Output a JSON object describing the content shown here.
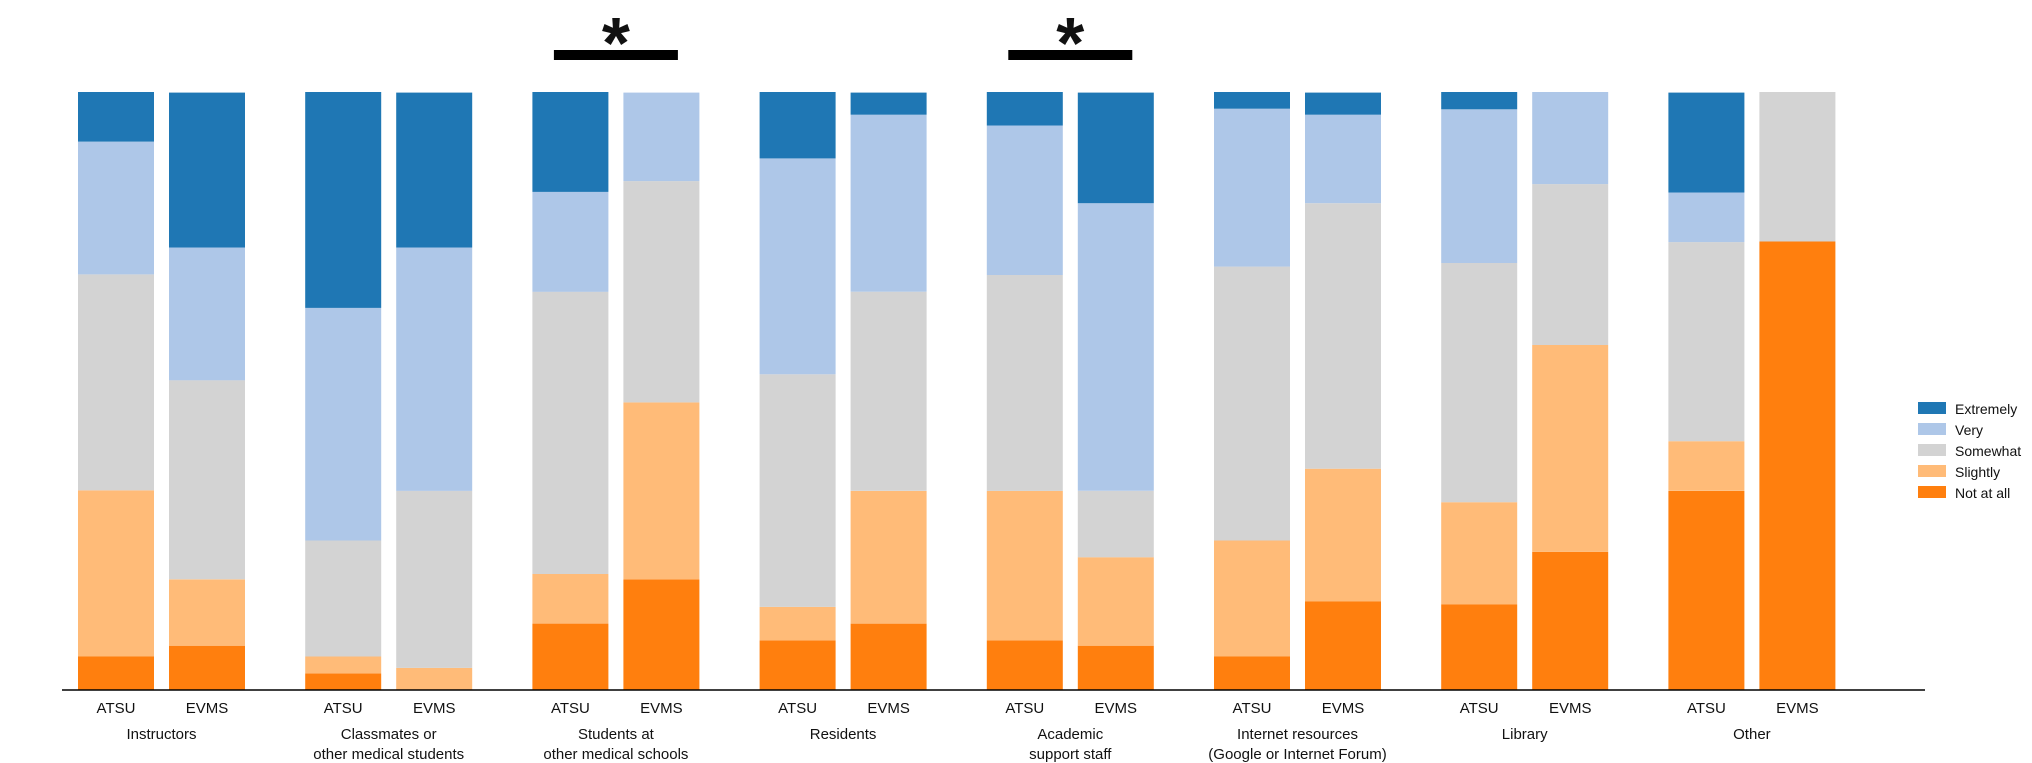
{
  "chart_data": {
    "type": "bar",
    "stacked": true,
    "normalized": true,
    "ylim": [
      0,
      100
    ],
    "xlabel": "",
    "ylabel": "",
    "legend_position": "right",
    "levels": [
      "Not at all",
      "Slightly",
      "Somewhat",
      "Very",
      "Extremely"
    ],
    "legend_order": [
      "Extremely",
      "Very",
      "Somewhat",
      "Slightly",
      "Not at all"
    ],
    "colors": {
      "Extremely": "#1f77b4",
      "Very": "#aec7e8",
      "Somewhat": "#d3d3d3",
      "Slightly": "#ffbb78",
      "Not at all": "#ff7f0e"
    },
    "significance_marker": "*",
    "groups": [
      {
        "label_lines": [
          "Instructors"
        ],
        "significant": false,
        "bars": [
          {
            "label": "ATSU",
            "values": {
              "Not at all": 5.6,
              "Slightly": 27.8,
              "Somewhat": 36.1,
              "Very": 22.2,
              "Extremely": 8.3
            }
          },
          {
            "label": "EVMS",
            "values": {
              "Not at all": 7.4,
              "Slightly": 11.1,
              "Somewhat": 33.3,
              "Very": 22.2,
              "Extremely": 25.9
            }
          }
        ]
      },
      {
        "label_lines": [
          "Classmates or",
          "other medical students"
        ],
        "significant": false,
        "bars": [
          {
            "label": "ATSU",
            "values": {
              "Not at all": 2.8,
              "Slightly": 2.8,
              "Somewhat": 19.4,
              "Very": 38.9,
              "Extremely": 36.1
            }
          },
          {
            "label": "EVMS",
            "values": {
              "Not at all": 0,
              "Slightly": 3.7,
              "Somewhat": 29.6,
              "Very": 40.7,
              "Extremely": 25.9
            }
          }
        ]
      },
      {
        "label_lines": [
          "Students at",
          "other medical schools"
        ],
        "significant": true,
        "bars": [
          {
            "label": "ATSU",
            "values": {
              "Not at all": 11.1,
              "Slightly": 8.3,
              "Somewhat": 47.2,
              "Very": 16.7,
              "Extremely": 16.7
            }
          },
          {
            "label": "EVMS",
            "values": {
              "Not at all": 18.5,
              "Slightly": 29.6,
              "Somewhat": 37.0,
              "Very": 14.8,
              "Extremely": 0
            }
          }
        ]
      },
      {
        "label_lines": [
          "Residents"
        ],
        "significant": false,
        "bars": [
          {
            "label": "ATSU",
            "values": {
              "Not at all": 8.3,
              "Slightly": 5.6,
              "Somewhat": 38.9,
              "Very": 36.1,
              "Extremely": 11.1
            }
          },
          {
            "label": "EVMS",
            "values": {
              "Not at all": 11.1,
              "Slightly": 22.2,
              "Somewhat": 33.3,
              "Very": 29.6,
              "Extremely": 3.7
            }
          }
        ]
      },
      {
        "label_lines": [
          "Academic",
          "support staff"
        ],
        "significant": true,
        "bars": [
          {
            "label": "ATSU",
            "values": {
              "Not at all": 8.3,
              "Slightly": 25.0,
              "Somewhat": 36.1,
              "Very": 25.0,
              "Extremely": 5.6
            }
          },
          {
            "label": "EVMS",
            "values": {
              "Not at all": 7.4,
              "Slightly": 14.8,
              "Somewhat": 11.1,
              "Very": 48.1,
              "Extremely": 18.5
            }
          }
        ]
      },
      {
        "label_lines": [
          "Internet resources",
          "(Google or Internet Forum)"
        ],
        "significant": false,
        "bars": [
          {
            "label": "ATSU",
            "values": {
              "Not at all": 5.6,
              "Slightly": 19.4,
              "Somewhat": 45.8,
              "Very": 26.4,
              "Extremely": 2.8
            }
          },
          {
            "label": "EVMS",
            "values": {
              "Not at all": 14.8,
              "Slightly": 22.2,
              "Somewhat": 44.4,
              "Very": 14.8,
              "Extremely": 3.7
            }
          }
        ]
      },
      {
        "label_lines": [
          "Library"
        ],
        "significant": false,
        "bars": [
          {
            "label": "ATSU",
            "values": {
              "Not at all": 14.3,
              "Slightly": 17.1,
              "Somewhat": 40.0,
              "Very": 25.7,
              "Extremely": 2.9
            }
          },
          {
            "label": "EVMS",
            "values": {
              "Not at all": 23.1,
              "Slightly": 34.6,
              "Somewhat": 26.9,
              "Very": 15.4,
              "Extremely": 0
            }
          }
        ]
      },
      {
        "label_lines": [
          "Other"
        ],
        "significant": false,
        "bars": [
          {
            "label": "ATSU",
            "values": {
              "Not at all": 33.3,
              "Slightly": 8.3,
              "Somewhat": 33.3,
              "Very": 8.3,
              "Extremely": 16.7
            }
          },
          {
            "label": "EVMS",
            "values": {
              "Not at all": 75.0,
              "Slightly": 0,
              "Somewhat": 25.0,
              "Very": 0,
              "Extremely": 0
            }
          }
        ]
      }
    ]
  }
}
